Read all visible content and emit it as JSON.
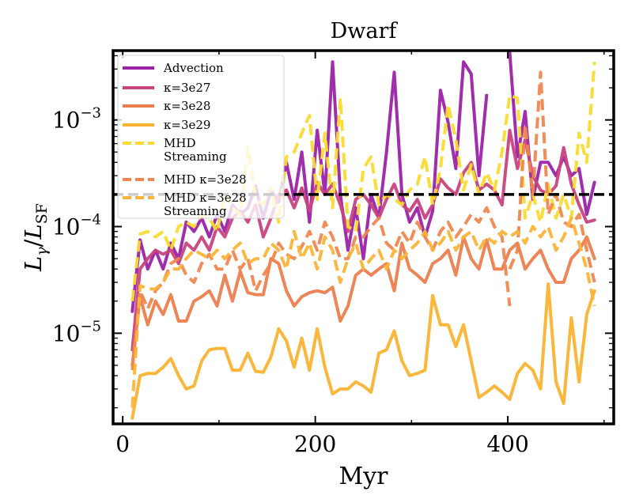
{
  "chart_data": {
    "type": "line",
    "title": "Dwarf",
    "xlabel": "Myr",
    "ylabel": "Lγ/LSF",
    "xlim": [
      -10,
      510
    ],
    "ylim_log10": [
      -5.85,
      -2.35
    ],
    "yscale": "log",
    "xticks": [
      0,
      200,
      400
    ],
    "xtick_labels": [
      "0",
      "200",
      "400"
    ],
    "yticks_log10": [
      -5,
      -4,
      -3
    ],
    "ytick_labels": [
      {
        "base": "10",
        "exp": "−5"
      },
      {
        "base": "10",
        "exp": "−4"
      },
      {
        "base": "10",
        "exp": "−3"
      }
    ],
    "hline": {
      "y": 0.0002,
      "style": "dashed",
      "color": "#000000"
    },
    "legend_position": "top-left",
    "series": [
      {
        "name": "Advection",
        "color": "#9b23a8",
        "dashed": false,
        "x": [
          10,
          18,
          26,
          34,
          42,
          50,
          58,
          66,
          74,
          82,
          90,
          98,
          106,
          114,
          122,
          130,
          138,
          146,
          154,
          162,
          170,
          178,
          186,
          194,
          202,
          210,
          218,
          226,
          234,
          242,
          250,
          258,
          266,
          274,
          282,
          290,
          298,
          306,
          314,
          322,
          330,
          338,
          346,
          354,
          362,
          370,
          378,
          null,
          402,
          410,
          418,
          426,
          434,
          442,
          450,
          458,
          466,
          474,
          482,
          490
        ],
        "y": [
          1.6e-05,
          7.5e-05,
          4e-05,
          6e-05,
          4e-05,
          7e-05,
          5e-05,
          0.00011,
          9e-05,
          0.00012,
          8e-05,
          0.00013,
          9e-05,
          0.00016,
          0.00013,
          0.00015,
          0.00024,
          0.00012,
          0.00022,
          0.00017,
          0.0004,
          0.00018,
          0.0005,
          0.00011,
          0.0008,
          0.0002,
          0.0035,
          0.0002,
          6e-05,
          0.00015,
          5e-05,
          0.0002,
          0.00012,
          0.0005,
          0.0028,
          0.0002,
          0.00011,
          0.00015,
          8e-05,
          0.00014,
          0.0019,
          0.00095,
          0.00035,
          0.0035,
          0.0027,
          0.0003,
          0.0017,
          null,
          0.0043,
          0.00045,
          0.0012,
          0.00018,
          0.0004,
          0.0004,
          0.0003,
          0.00045,
          0.0003,
          0.00035,
          0.00013,
          0.00026
        ]
      },
      {
        "name": "κ=3e27",
        "color": "#c8437f",
        "dashed": false,
        "x": [
          10,
          18,
          26,
          34,
          42,
          50,
          58,
          66,
          74,
          82,
          90,
          98,
          106,
          114,
          122,
          130,
          138,
          146,
          154,
          162,
          170,
          178,
          186,
          194,
          202,
          210,
          218,
          226,
          234,
          242,
          250,
          258,
          266,
          274,
          282,
          290,
          298,
          306,
          314,
          322,
          330,
          338,
          346,
          354,
          362,
          370,
          378,
          386,
          394,
          402,
          410,
          418,
          426,
          434,
          442,
          450,
          458,
          466,
          474,
          482,
          490
        ],
        "y": [
          7e-06,
          4e-05,
          5e-05,
          6e-05,
          5.5e-05,
          6e-05,
          4.5e-05,
          7e-05,
          6e-05,
          8e-05,
          6e-05,
          0.0001,
          8e-05,
          0.00012,
          0.00014,
          0.00011,
          0.00016,
          8e-05,
          0.00012,
          0.0002,
          0.00022,
          0.00015,
          0.00023,
          0.00014,
          0.00026,
          0.0002,
          0.00025,
          0.00016,
          9e-05,
          0.00018,
          0.0002,
          0.00016,
          0.00012,
          0.00018,
          0.00025,
          0.00016,
          0.00014,
          0.00018,
          0.00012,
          0.00016,
          0.00028,
          0.00023,
          0.0002,
          0.00032,
          0.0004,
          0.00022,
          0.00025,
          0.00022,
          0.00016,
          0.0008,
          0.00035,
          0.00065,
          0.0003,
          0.00022,
          0.0002,
          0.00024,
          0.00055,
          0.00025,
          0.00016,
          0.00011,
          0.000115
        ]
      },
      {
        "name": "κ=3e28",
        "color": "#ec7e4e",
        "dashed": false,
        "x": [
          10,
          18,
          26,
          34,
          42,
          50,
          58,
          66,
          74,
          82,
          90,
          98,
          106,
          114,
          122,
          130,
          138,
          146,
          154,
          162,
          170,
          178,
          186,
          194,
          202,
          210,
          218,
          226,
          234,
          242,
          250,
          258,
          266,
          274,
          282,
          290,
          298,
          306,
          314,
          322,
          330,
          338,
          346,
          354,
          362,
          370,
          378,
          386,
          394,
          402,
          410,
          418,
          426,
          434,
          442,
          450,
          458,
          466,
          474,
          482,
          490
        ],
        "y": [
          5e-06,
          2.2e-05,
          1.2e-05,
          2e-05,
          1.5e-05,
          2.3e-05,
          1.3e-05,
          1.3e-05,
          2e-05,
          2.2e-05,
          2.5e-05,
          1.8e-05,
          3.5e-05,
          2e-05,
          3.8e-05,
          2.4e-05,
          2.3e-05,
          2.3e-05,
          5e-05,
          4.5e-05,
          2.5e-05,
          1.8e-05,
          2.2e-05,
          2.4e-05,
          2.5e-05,
          2.4e-05,
          2.7e-05,
          1.3e-05,
          1.8e-05,
          3.5e-05,
          4e-05,
          3.5e-05,
          4e-05,
          4.5e-05,
          2.5e-05,
          7e-05,
          4e-05,
          3.5e-05,
          3e-05,
          4.5e-05,
          5e-05,
          6e-05,
          3.5e-05,
          8e-05,
          5e-05,
          4e-05,
          7.5e-05,
          4e-05,
          4e-05,
          6e-05,
          7e-05,
          4e-05,
          5e-05,
          6e-05,
          4e-05,
          3e-05,
          3e-05,
          5e-05,
          6e-05,
          8e-05,
          5e-05
        ]
      },
      {
        "name": "κ=3e29",
        "color": "#fbb232",
        "dashed": false,
        "x": [
          10,
          18,
          26,
          34,
          42,
          50,
          58,
          66,
          74,
          82,
          90,
          98,
          106,
          114,
          122,
          130,
          138,
          146,
          154,
          162,
          170,
          178,
          186,
          194,
          202,
          210,
          218,
          226,
          234,
          242,
          250,
          258,
          266,
          274,
          282,
          290,
          298,
          306,
          314,
          322,
          330,
          338,
          346,
          354,
          362,
          370,
          378,
          386,
          394,
          402,
          410,
          418,
          426,
          434,
          442,
          450,
          458,
          466,
          474,
          482,
          490
        ],
        "y": [
          1.6e-06,
          4e-06,
          4.2e-06,
          4.2e-06,
          4.8e-06,
          5.8e-06,
          4e-06,
          3e-06,
          3.2e-06,
          5.5e-06,
          7e-06,
          7.2e-06,
          7.2e-06,
          4.5e-06,
          4.5e-06,
          6.5e-06,
          4.4e-06,
          4.3e-06,
          6e-06,
          1.1e-05,
          8.5e-06,
          4.8e-06,
          9e-06,
          4.5e-06,
          1.1e-05,
          4.8e-06,
          2.7e-06,
          3e-06,
          3e-06,
          3.5e-06,
          3.2e-06,
          2.8e-06,
          6.5e-06,
          7e-06,
          1.05e-05,
          5.5e-06,
          4e-06,
          4.2e-06,
          4.5e-06,
          2.25e-05,
          1.2e-05,
          1.2e-05,
          7.5e-06,
          1.2e-05,
          5.5e-06,
          2.5e-06,
          2.8e-06,
          3.2e-06,
          2.8e-06,
          2.4e-06,
          4.2e-06,
          5.2e-06,
          4.5e-06,
          3e-06,
          2.9e-05,
          3.5e-06,
          2.2e-06,
          1.4e-05,
          3.5e-06,
          1.5e-05,
          2.5e-05
        ]
      },
      {
        "name": "MHD Streaming",
        "color": "#fadb2f",
        "dashed": true,
        "x": [
          10,
          18,
          26,
          34,
          42,
          50,
          58,
          66,
          74,
          82,
          90,
          98,
          106,
          114,
          122,
          130,
          138,
          146,
          154,
          162,
          170,
          178,
          186,
          194,
          202,
          210,
          218,
          226,
          234,
          242,
          250,
          258,
          266,
          274,
          282,
          290,
          298,
          306,
          314,
          322,
          330,
          338,
          346,
          354,
          362,
          370,
          378,
          386,
          394,
          402,
          410,
          418,
          426,
          434,
          442,
          450,
          458,
          466,
          474,
          482,
          490
        ],
        "y": [
          2e-05,
          8.5e-05,
          9e-05,
          8e-05,
          9e-05,
          6e-05,
          0.0001,
          0.00011,
          0.0001,
          0.00013,
          0.00012,
          9e-05,
          0.0002,
          0.00015,
          0.00013,
          0.00055,
          0.00018,
          0.00016,
          0.00023,
          0.00011,
          0.00045,
          0.0005,
          0.00075,
          0.0011,
          0.00018,
          0.00075,
          0.00015,
          0.0016,
          0.0001,
          9e-05,
          0.00035,
          0.00045,
          0.00016,
          0.0002,
          0.00018,
          0.00016,
          0.00022,
          0.00025,
          0.00045,
          0.00016,
          0.00035,
          0.0014,
          0.00065,
          0.00022,
          0.00038,
          0.0002,
          0.00032,
          0.00022,
          0.0005,
          0.0017,
          0.0016,
          0.00012,
          0.0002,
          0.00011,
          0.00025,
          0.00012,
          0.0002,
          0.00012,
          0.00075,
          0.0004,
          0.0035
        ]
      },
      {
        "name": "MHD κ=3e28",
        "color": "#ef8750",
        "dashed": true,
        "x": [
          10,
          18,
          26,
          34,
          42,
          50,
          58,
          66,
          74,
          82,
          90,
          98,
          106,
          114,
          122,
          130,
          138,
          146,
          154,
          162,
          170,
          178,
          186,
          194,
          202,
          210,
          218,
          226,
          234,
          242,
          250,
          258,
          266,
          274,
          282,
          290,
          298,
          306,
          314,
          322,
          330,
          338,
          346,
          354,
          362,
          370,
          378,
          386,
          394,
          402,
          null,
          402,
          410,
          418,
          426,
          434,
          442,
          450,
          458,
          466,
          474,
          482,
          490
        ],
        "y": [
          4.5e-06,
          2.5e-05,
          1.7e-05,
          2.5e-05,
          3e-05,
          4.5e-05,
          5e-05,
          3.5e-05,
          3e-05,
          4.5e-05,
          5.5e-05,
          4e-05,
          4e-05,
          6e-05,
          4e-05,
          5e-05,
          2.5e-05,
          3.5e-05,
          4.5e-05,
          7e-05,
          5.5e-05,
          5e-05,
          6.5e-05,
          9e-05,
          6e-05,
          0.00011,
          8e-05,
          5e-05,
          5e-05,
          8e-05,
          8e-05,
          0.0001,
          0.00012,
          7e-05,
          6e-05,
          9e-05,
          7e-05,
          0.00011,
          8e-05,
          6e-05,
          9e-05,
          0.00011,
          8e-05,
          0.0001,
          0.00013,
          0.00011,
          0.00015,
          0.0001,
          8e-05,
          1.8e-05,
          null,
          4e-05,
          6e-05,
          0.0009,
          0.0002,
          0.0028,
          0.00013,
          0.0002,
          0.00011,
          0.0001,
          0.00013,
          6e-05,
          3e-05
        ]
      },
      {
        "name": "MHD κ=3e28 Streaming",
        "color": "#fbb538",
        "dashed": true,
        "x": [
          10,
          18,
          26,
          34,
          42,
          50,
          58,
          66,
          74,
          82,
          90,
          98,
          106,
          114,
          122,
          130,
          138,
          146,
          154,
          162,
          170,
          178,
          186,
          194,
          202,
          210,
          218,
          226,
          234,
          242,
          250,
          258,
          266,
          274,
          282,
          290,
          298,
          306,
          314,
          322,
          330,
          338,
          346,
          354,
          362,
          370,
          378,
          386,
          394,
          402,
          410,
          418,
          426,
          434,
          442,
          450,
          458,
          466,
          474,
          482,
          490
        ],
        "y": [
          2e-06,
          2.8e-05,
          2.6e-05,
          2.6e-05,
          3e-05,
          4e-05,
          4e-05,
          5e-05,
          6e-05,
          5.5e-05,
          5e-05,
          6e-05,
          5e-05,
          6e-05,
          7e-05,
          4.5e-05,
          5e-05,
          5e-05,
          7e-05,
          6e-05,
          4e-05,
          9e-05,
          5e-05,
          7e-05,
          4e-05,
          8e-05,
          6e-05,
          3e-05,
          5e-05,
          7e-05,
          4e-05,
          5e-05,
          6e-05,
          4e-05,
          6e-05,
          5e-05,
          6e-05,
          7e-05,
          9e-05,
          6e-05,
          7e-05,
          9e-05,
          6e-05,
          8e-05,
          9e-05,
          6e-05,
          8e-05,
          7e-05,
          9e-05,
          8e-05,
          9e-05,
          7e-05,
          0.0001,
          8e-05,
          0.0001,
          6e-05,
          8e-05,
          0.00012,
          7e-05,
          4e-05,
          1.8e-05
        ]
      }
    ]
  }
}
